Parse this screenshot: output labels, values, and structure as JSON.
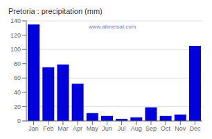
{
  "chart_data": {
    "type": "bar",
    "title": "Pretoria : precipitation (mm)",
    "categories": [
      "Jan",
      "Feb",
      "Mar",
      "Apr",
      "May",
      "Jun",
      "Jul",
      "Aug",
      "Sep",
      "Oct",
      "Nov",
      "Dec"
    ],
    "values": [
      135,
      75,
      79,
      52,
      11,
      7,
      3,
      5,
      19,
      7,
      9,
      105
    ],
    "color": "#0000dd",
    "ylim": [
      0,
      140
    ],
    "yticks": [
      0,
      20,
      40,
      60,
      80,
      100,
      120,
      140
    ],
    "grid": true,
    "annotations": [
      "www.allmetsat.com"
    ]
  }
}
